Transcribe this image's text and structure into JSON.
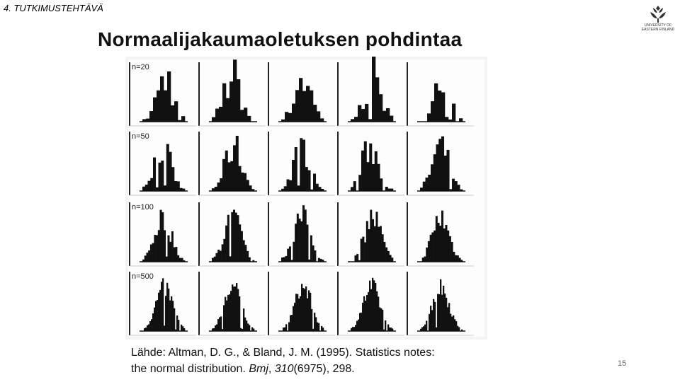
{
  "header": {
    "section": "4. TUTKIMUSTEHTÄVÄ",
    "title": "Normaalijakaumaoletuksen pohdintaa",
    "logo": [
      "UNIVERSITY OF",
      "EASTERN FINLAND"
    ]
  },
  "figure": {
    "row_labels": [
      "n=20",
      "n=50",
      "n=100",
      "n=500"
    ]
  },
  "citation": {
    "prefix": "Lähde: Altman, D. G., & Bland, J. M. (1995). Statistics notes: the normal distribution. ",
    "journal": "Bmj",
    "sep": ", ",
    "volume": "310",
    "suffix": "(6975), 298."
  },
  "page_number": "15"
}
